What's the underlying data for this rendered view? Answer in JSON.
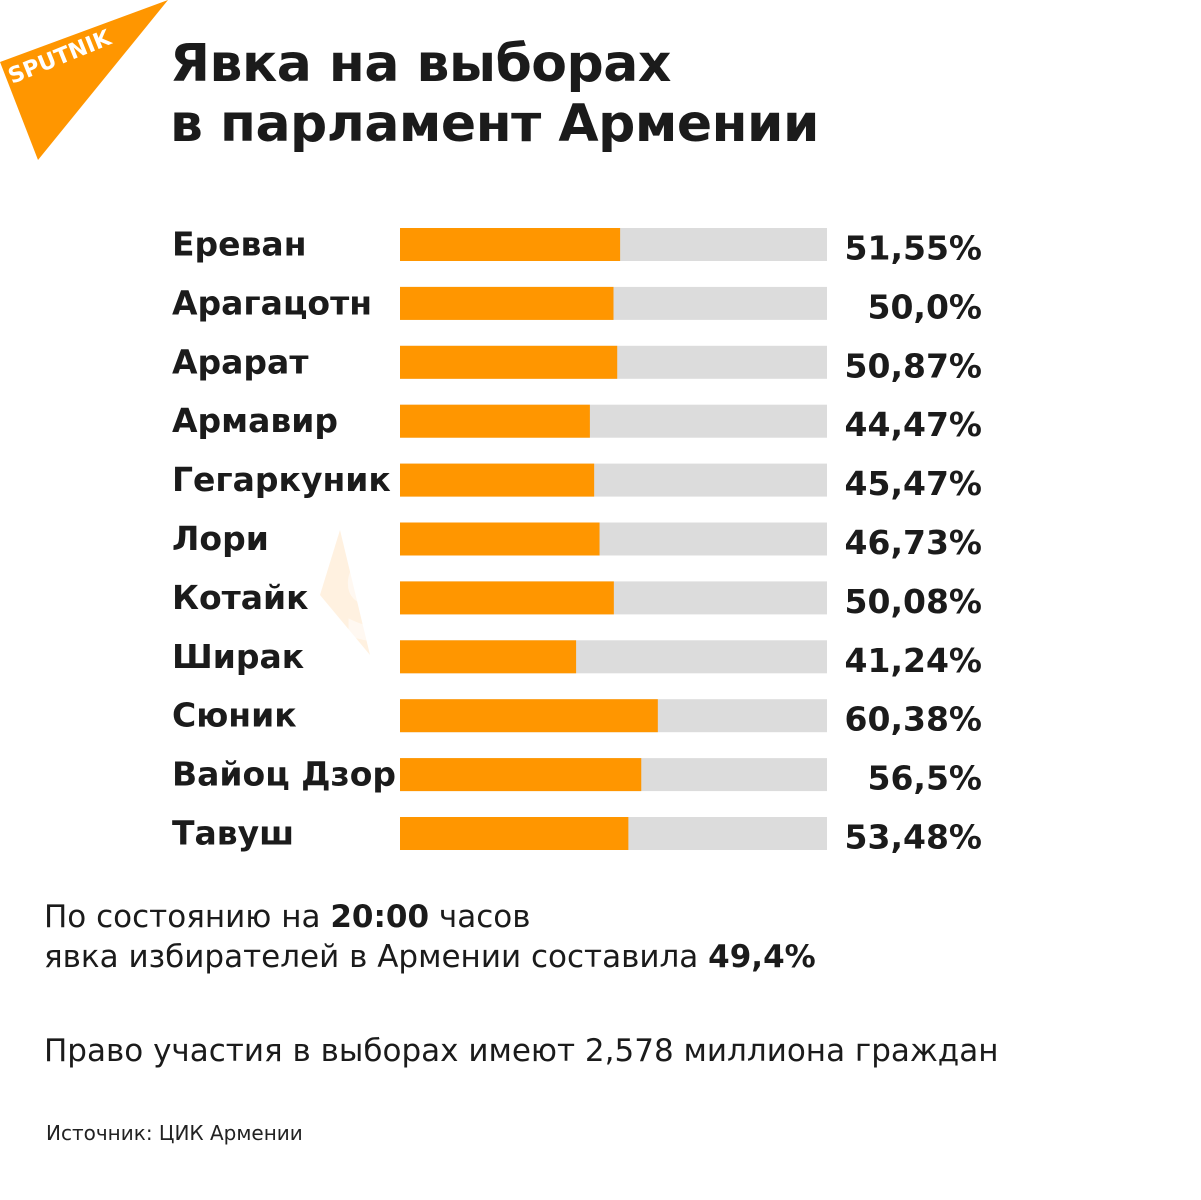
{
  "brand": {
    "logo_text": "SPUTNIK",
    "accent": "#FF9600"
  },
  "title": {
    "line1": "Явка на выборах",
    "line2": "в парламент Армении"
  },
  "chart_data": {
    "type": "bar",
    "orientation": "horizontal",
    "categories": [
      "Ереван",
      "Арагацотн",
      "Арарат",
      "Армавир",
      "Гегаркуник",
      "Лори",
      "Котайк",
      "Ширак",
      "Сюник",
      "Вайоц Дзор",
      "Тавуш"
    ],
    "values": [
      51.55,
      50.0,
      50.87,
      44.47,
      45.47,
      46.73,
      50.08,
      41.24,
      60.38,
      56.5,
      53.48
    ],
    "value_labels": [
      "51,55%",
      "50,0%",
      "50,87%",
      "44,47%",
      "45,47%",
      "46,73%",
      "50,08%",
      "41,24%",
      "60,38%",
      "56,5%",
      "53,48%"
    ],
    "xlim": [
      0,
      100
    ],
    "bar_color": "#FF9600",
    "track_color": "#DCDCDC",
    "grid": false,
    "legend": "none"
  },
  "summary": {
    "line1_pre": "По состоянию на ",
    "line1_bold": "20:00",
    "line1_post": " часов",
    "line2_pre": "явка избирателей в Армении составила ",
    "line2_bold": "49,4%"
  },
  "eligible": "Право участия в выборах имеют 2,578 миллиона граждан",
  "source": "Источник: ЦИК Армении"
}
